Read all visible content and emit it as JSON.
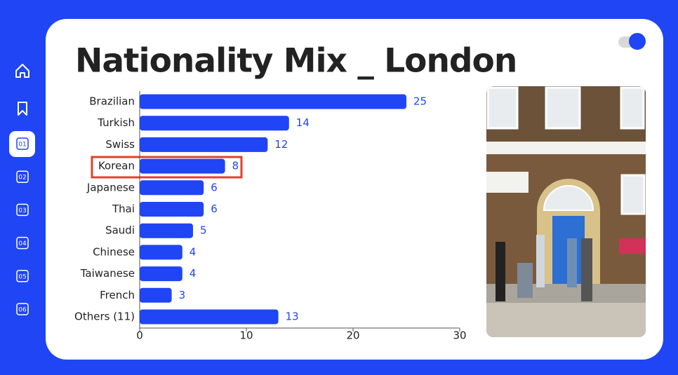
{
  "nav": [
    "01",
    "02",
    "03",
    "04",
    "05",
    "06"
  ],
  "chart_data": {
    "type": "hbar",
    "title": "Nationality Mix _ London",
    "categories": [
      "Brazilian",
      "Turkish",
      "Swiss",
      "Korean",
      "Japanese",
      "Thai",
      "Saudi",
      "Chinese",
      "Taiwanese",
      "French",
      "Others (11)"
    ],
    "values": [
      25,
      14,
      12,
      8,
      6,
      6,
      5,
      4,
      4,
      3,
      13
    ],
    "color": "#1f45f5",
    "xlim": [
      0,
      30
    ],
    "xticks": [
      0,
      10,
      20,
      30
    ]
  }
}
